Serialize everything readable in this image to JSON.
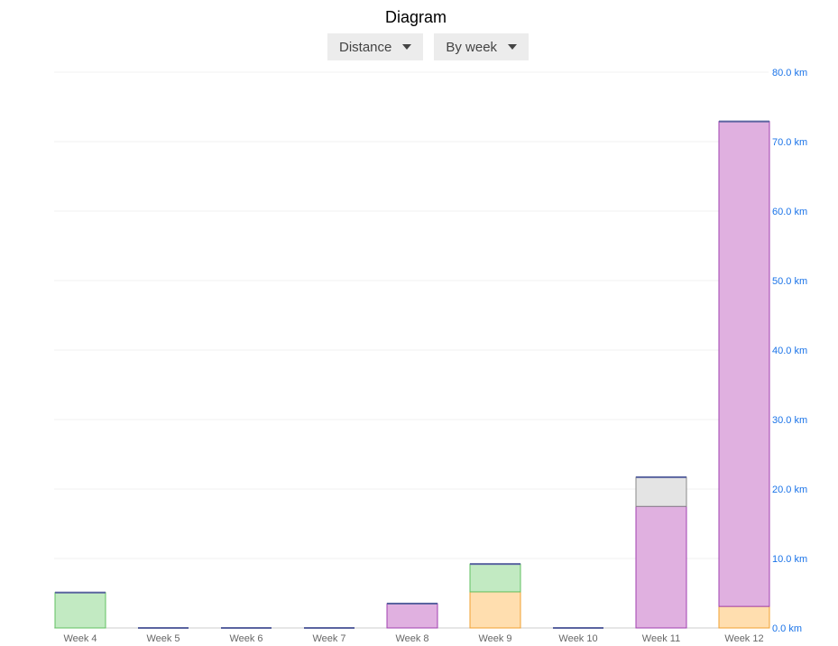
{
  "title": "Diagram",
  "controls": {
    "metric": "Distance",
    "grouping": "By week"
  },
  "chart_data": {
    "type": "bar",
    "stacked": true,
    "categories": [
      "Week 4",
      "Week 5",
      "Week 6",
      "Week 7",
      "Week 8",
      "Week 9",
      "Week 10",
      "Week 11",
      "Week 12"
    ],
    "series": [
      {
        "color": "#ffdeaf",
        "border": "#f0a030",
        "values": [
          0,
          0,
          0,
          0,
          0,
          5.2,
          0,
          0,
          3.1
        ]
      },
      {
        "color": "#e0b0e0",
        "border": "#a040b0",
        "values": [
          0,
          0,
          0,
          0,
          3.5,
          0,
          0,
          17.5,
          69.8
        ]
      },
      {
        "color": "#c2eac2",
        "border": "#60c060",
        "values": [
          5.1,
          0,
          0,
          0,
          0,
          4.0,
          0,
          0,
          0
        ]
      },
      {
        "color": "#e4e4e4",
        "border": "#888888",
        "values": [
          0,
          0,
          0,
          0,
          0,
          0,
          0,
          4.2,
          0
        ]
      }
    ],
    "ylim": [
      0,
      80
    ],
    "yticks": [
      "0.0 km",
      "10.0 km",
      "20.0 km",
      "30.0 km",
      "40.0 km",
      "50.0 km",
      "60.0 km",
      "70.0 km",
      "80.0 km"
    ],
    "yaxis_position": "right",
    "grid": true,
    "tick_color": "#1a73e8"
  }
}
